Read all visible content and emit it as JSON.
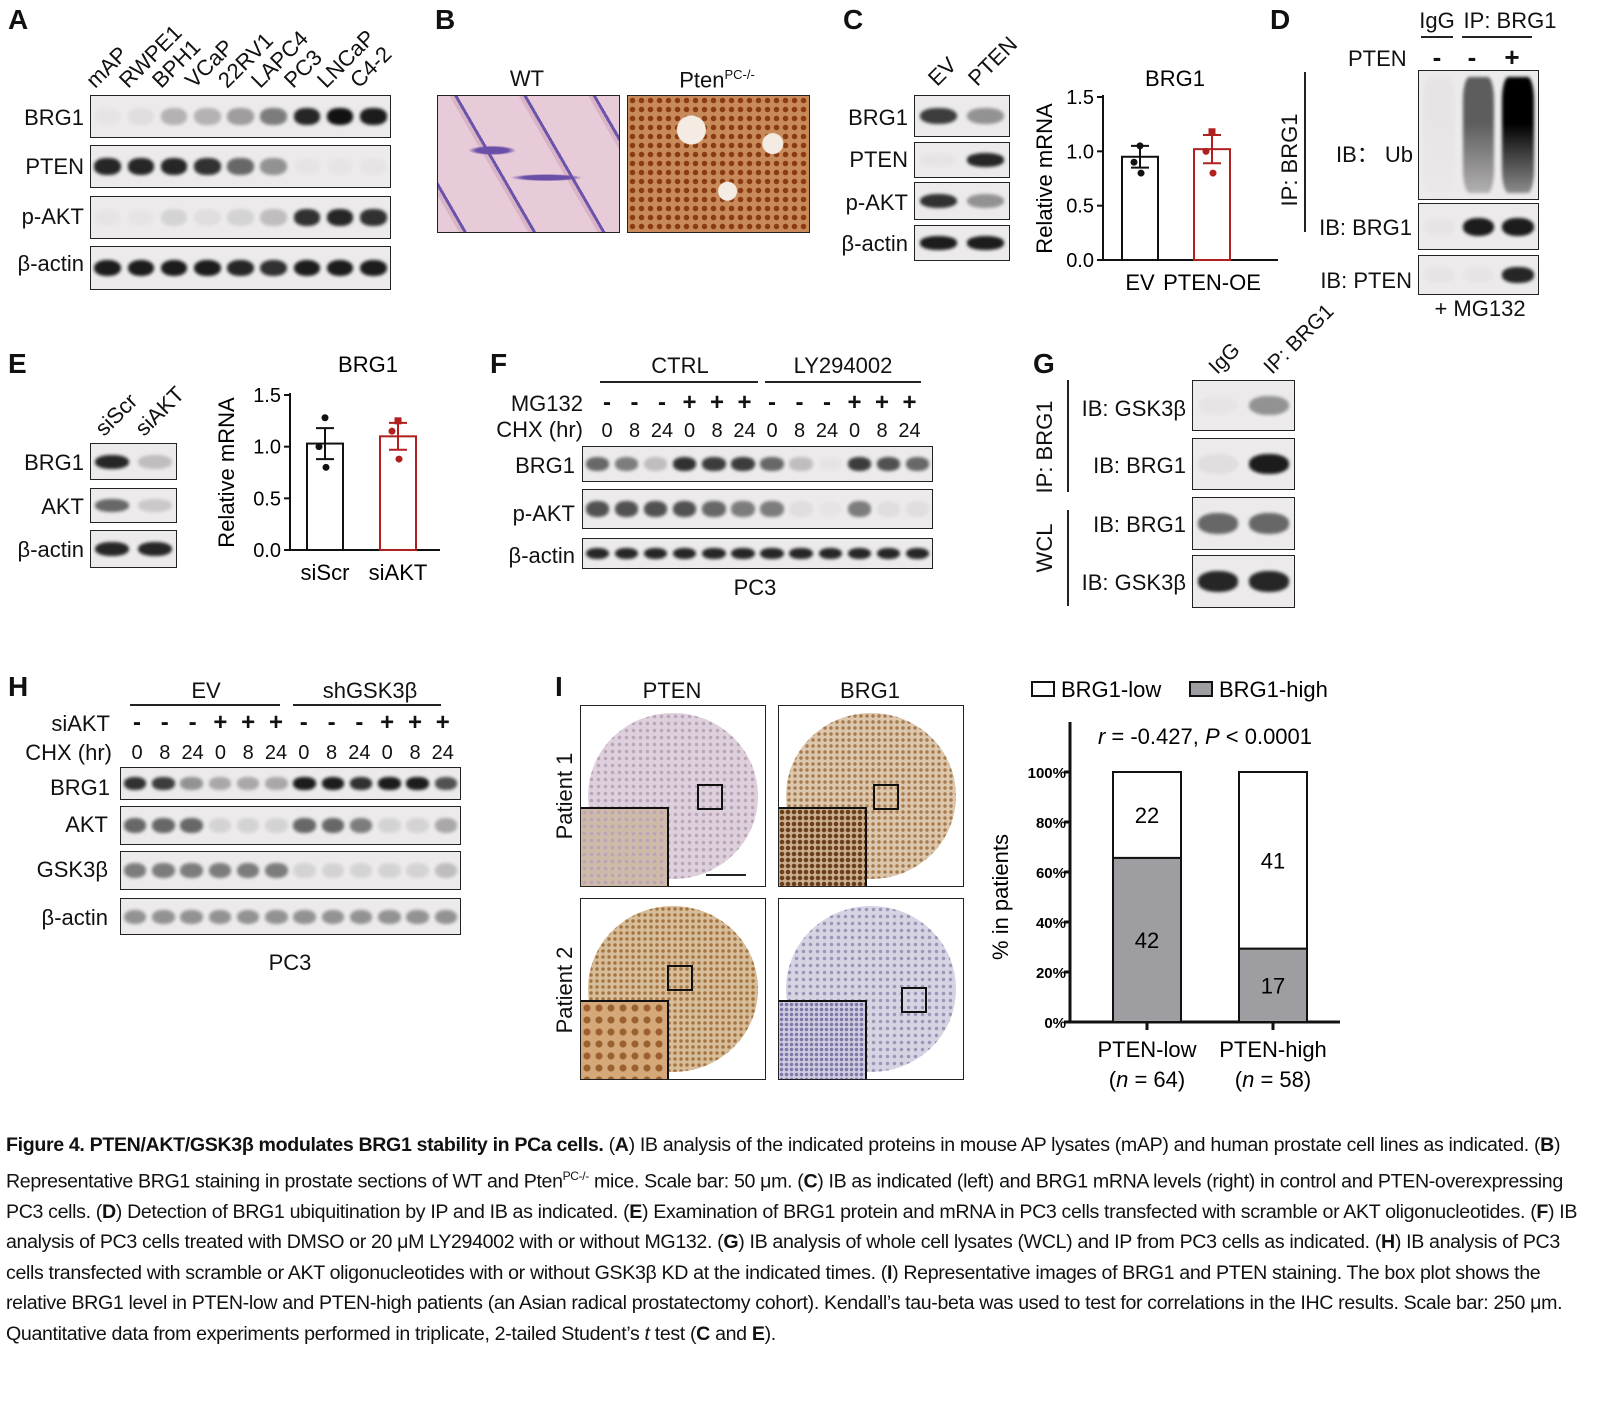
{
  "panelA": {
    "label": "A",
    "lanes": [
      "mAP",
      "RWPE1",
      "BPH1",
      "VCaP",
      "22RV1",
      "LAPC4",
      "PC3",
      "LNCaP",
      "C4-2"
    ],
    "rows": [
      {
        "name": "BRG1",
        "bands": [
          0.02,
          0.05,
          0.25,
          0.25,
          0.35,
          0.5,
          0.9,
          1,
          0.95
        ]
      },
      {
        "name": "PTEN",
        "bands": [
          0.9,
          0.9,
          0.9,
          0.85,
          0.6,
          0.4,
          0,
          0,
          0
        ]
      },
      {
        "name": "p-AKT",
        "bands": [
          0,
          0,
          0.1,
          0.05,
          0.1,
          0.2,
          0.85,
          0.9,
          0.85
        ]
      },
      {
        "name": "β-actin",
        "bands": [
          0.95,
          0.95,
          0.95,
          0.95,
          0.9,
          0.85,
          0.95,
          0.95,
          0.95
        ]
      }
    ]
  },
  "panelB": {
    "label": "B",
    "wt": "WT",
    "ko_base": "Pten",
    "ko_sup": "PC-/-"
  },
  "panelC": {
    "label": "C",
    "lanes": [
      "EV",
      "PTEN"
    ],
    "rows": [
      {
        "name": "BRG1",
        "bands": [
          0.8,
          0.4
        ]
      },
      {
        "name": "PTEN",
        "bands": [
          0,
          0.9
        ]
      },
      {
        "name": "p-AKT",
        "bands": [
          0.85,
          0.4
        ]
      },
      {
        "name": "β-actin",
        "bands": [
          0.95,
          0.95
        ]
      }
    ]
  },
  "panelD": {
    "label": "D",
    "igg": "IgG",
    "ip": "IP: BRG1",
    "pten_label": "PTEN",
    "signs": [
      "-",
      "-",
      "+"
    ],
    "ip_side": "IP: BRG1",
    "rows": [
      {
        "name": "IB： Ub",
        "bands": [
          0,
          0.6,
          1
        ]
      },
      {
        "name": "IB: BRG1",
        "bands": [
          0,
          0.95,
          0.95
        ]
      },
      {
        "name": "IB: PTEN",
        "bands": [
          0,
          0,
          0.9
        ]
      }
    ],
    "footer": "+ MG132"
  },
  "panelE": {
    "label": "E",
    "lanes": [
      "siScr",
      "siAKT"
    ],
    "rows": [
      {
        "name": "BRG1",
        "bands": [
          0.9,
          0.2
        ]
      },
      {
        "name": "AKT",
        "bands": [
          0.6,
          0.15
        ]
      },
      {
        "name": "β-actin",
        "bands": [
          0.9,
          0.9
        ]
      }
    ]
  },
  "panelF": {
    "label": "F",
    "groups": [
      "CTRL",
      "LY294002"
    ],
    "mg132_label": "MG132",
    "chx_label": "CHX (hr)",
    "mg132": [
      "-",
      "-",
      "-",
      "+",
      "+",
      "+",
      "-",
      "-",
      "-",
      "+",
      "+",
      "+"
    ],
    "chx": [
      "0",
      "8",
      "24",
      "0",
      "8",
      "24",
      "0",
      "8",
      "24",
      "0",
      "8",
      "24"
    ],
    "rows": [
      {
        "name": "BRG1",
        "bands": [
          0.6,
          0.5,
          0.2,
          0.85,
          0.8,
          0.8,
          0.6,
          0.2,
          0,
          0.8,
          0.7,
          0.6
        ]
      },
      {
        "name": "p-AKT",
        "bands": [
          0.7,
          0.7,
          0.7,
          0.7,
          0.6,
          0.5,
          0.5,
          0.05,
          0,
          0.5,
          0.05,
          0.05
        ]
      },
      {
        "name": "β-actin",
        "bands": [
          0.9,
          0.9,
          0.9,
          0.9,
          0.9,
          0.9,
          0.9,
          0.9,
          0.9,
          0.9,
          0.9,
          0.9
        ]
      }
    ],
    "footer": "PC3"
  },
  "panelG": {
    "label": "G",
    "lanes": [
      "IgG",
      "IP: BRG1"
    ],
    "side_ip": "IP: BRG1",
    "side_wcl": "WCL",
    "rows": [
      {
        "name": "IB: GSK3β",
        "bands": [
          0,
          0.4
        ]
      },
      {
        "name": "IB: BRG1",
        "bands": [
          0.05,
          0.95
        ]
      },
      {
        "name": "IB: BRG1",
        "bands": [
          0.6,
          0.6
        ]
      },
      {
        "name": "IB: GSK3β",
        "bands": [
          0.9,
          0.9
        ]
      }
    ]
  },
  "panelH": {
    "label": "H",
    "groups": [
      "EV",
      "shGSK3β"
    ],
    "siakt_label": "siAKT",
    "chx_label": "CHX (hr)",
    "siakt": [
      "-",
      "-",
      "-",
      "+",
      "+",
      "+",
      "-",
      "-",
      "-",
      "+",
      "+",
      "+"
    ],
    "chx": [
      "0",
      "8",
      "24",
      "0",
      "8",
      "24",
      "0",
      "8",
      "24",
      "0",
      "8",
      "24"
    ],
    "rows": [
      {
        "name": "BRG1",
        "bands": [
          0.85,
          0.8,
          0.4,
          0.3,
          0.3,
          0.3,
          0.95,
          0.95,
          0.85,
          0.95,
          0.95,
          0.7
        ]
      },
      {
        "name": "AKT",
        "bands": [
          0.6,
          0.6,
          0.6,
          0.1,
          0.1,
          0.1,
          0.6,
          0.6,
          0.5,
          0.1,
          0.1,
          0.3
        ]
      },
      {
        "name": "GSK3β",
        "bands": [
          0.5,
          0.5,
          0.5,
          0.5,
          0.5,
          0.5,
          0.1,
          0.1,
          0.1,
          0.1,
          0.1,
          0.2
        ]
      },
      {
        "name": "β-actin",
        "bands": [
          0.4,
          0.4,
          0.4,
          0.4,
          0.4,
          0.4,
          0.4,
          0.4,
          0.4,
          0.4,
          0.4,
          0.4
        ]
      }
    ],
    "footer": "PC3"
  },
  "panelI": {
    "label": "I",
    "cols": [
      "PTEN",
      "BRG1"
    ],
    "rows": [
      "Patient 1",
      "Patient 2"
    ]
  },
  "chart_data": [
    {
      "type": "bar",
      "panel": "C",
      "title": "BRG1",
      "ylabel": "Relative mRNA",
      "categories": [
        "EV",
        "PTEN-OE"
      ],
      "values": [
        0.95,
        1.02
      ],
      "sem": [
        0.1,
        0.13
      ],
      "points": [
        [
          1.05,
          0.9,
          0.8
        ],
        [
          1.18,
          1.0,
          0.8
        ]
      ],
      "colors": [
        "#111111",
        "#b0201e"
      ],
      "ylim": [
        0,
        1.5
      ],
      "yticks": [
        "0.0",
        "0.5",
        "1.0",
        "1.5"
      ]
    },
    {
      "type": "bar",
      "panel": "E",
      "title": "BRG1",
      "ylabel": "Relative mRNA",
      "categories": [
        "siScr",
        "siAKT"
      ],
      "values": [
        1.03,
        1.1
      ],
      "sem": [
        0.15,
        0.13
      ],
      "points": [
        [
          1.28,
          1.0,
          0.8
        ],
        [
          1.25,
          1.15,
          0.88
        ]
      ],
      "colors": [
        "#111111",
        "#b0201e"
      ],
      "ylim": [
        0,
        1.5
      ],
      "yticks": [
        "0.0",
        "0.5",
        "1.0",
        "1.5"
      ]
    },
    {
      "type": "bar",
      "stacked": true,
      "panel": "I",
      "ylabel": "% in patients",
      "annotation": "r = -0.427, P < 0.0001",
      "categories": [
        "PTEN-low",
        "PTEN-high"
      ],
      "n_labels": [
        "(n = 64)",
        "(n = 58)"
      ],
      "series": [
        {
          "name": "BRG1-high",
          "values": [
            42,
            17
          ],
          "color": "#9e9ea2"
        },
        {
          "name": "BRG1-low",
          "values": [
            22,
            41
          ],
          "color": "#ffffff"
        }
      ],
      "legend": [
        "BRG1-low",
        "BRG1-high"
      ],
      "legend_position": "top",
      "ylim": [
        0,
        100
      ],
      "yticks": [
        "0%",
        "20%",
        "40%",
        "60%",
        "80%",
        "100%"
      ]
    }
  ],
  "caption": [
    {
      "t": "Figure 4. PTEN/AKT/GSK3β modulates BRG1 stability in PCa cells.",
      "b": true
    },
    {
      "t": " ("
    },
    {
      "t": "A",
      "b": true
    },
    {
      "t": ") IB analysis of the indicated proteins in mouse AP lysates (mAP) and human prostate cell lines as indicated. ("
    },
    {
      "t": "B",
      "b": true
    },
    {
      "t": ") Representative BRG1 staining in prostate sections of WT and Pten"
    },
    {
      "t": "PC-/-",
      "sup": true
    },
    {
      "t": " mice. Scale bar: 50 μm. ("
    },
    {
      "t": "C",
      "b": true
    },
    {
      "t": ") IB as indicated (left) and BRG1 mRNA levels (right) in control and PTEN-overexpressing PC3 cells. ("
    },
    {
      "t": "D",
      "b": true
    },
    {
      "t": ") Detection of BRG1 ubiquitination by IP and IB as indicated. ("
    },
    {
      "t": "E",
      "b": true
    },
    {
      "t": ") Examination of BRG1 protein and mRNA in PC3 cells transfected with scramble or AKT oligonucleotides. ("
    },
    {
      "t": "F",
      "b": true
    },
    {
      "t": ") IB analysis of PC3 cells treated with DMSO or 20 μM LY294002 with or without MG132. ("
    },
    {
      "t": "G",
      "b": true
    },
    {
      "t": ") IB analysis of whole cell lysates (WCL) and IP from PC3 cells as indicated. ("
    },
    {
      "t": "H",
      "b": true
    },
    {
      "t": ") IB analysis of PC3 cells transfected with scramble or AKT oligonucleotides with or without GSK3β KD at the indicated times. ("
    },
    {
      "t": "I",
      "b": true
    },
    {
      "t": ") Representative images of BRG1 and PTEN staining. The box plot shows the relative BRG1 level in PTEN-low and PTEN-high patients (an Asian radical prostatectomy cohort). Kendall’s tau-beta was used to test for correlations in the IHC results. Scale bar: 250 μm. Quantitative data from experiments performed in triplicate, 2-tailed Student’s "
    },
    {
      "t": "t",
      "i": true
    },
    {
      "t": " test ("
    },
    {
      "t": "C",
      "b": true
    },
    {
      "t": " and "
    },
    {
      "t": "E",
      "b": true
    },
    {
      "t": ")."
    }
  ]
}
